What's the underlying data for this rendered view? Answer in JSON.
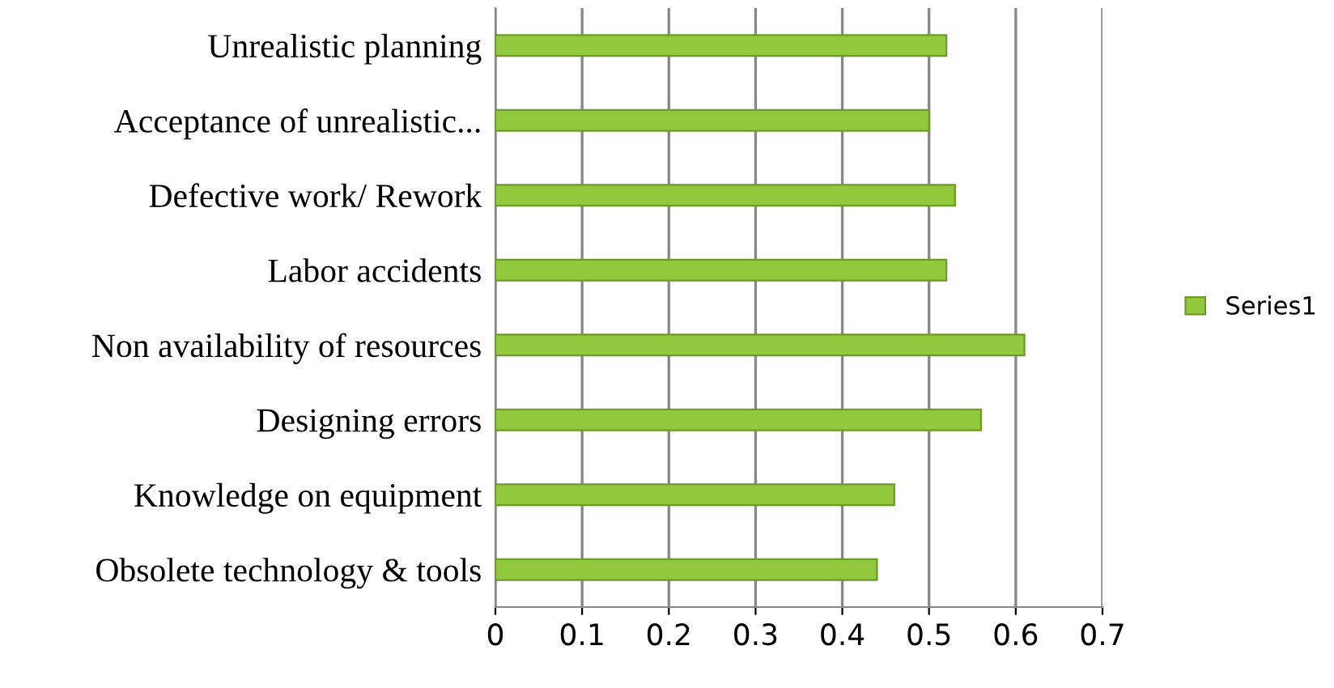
{
  "chart_data": {
    "type": "bar",
    "orientation": "horizontal",
    "categories": [
      "Unrealistic planning",
      "Acceptance of unrealistic...",
      "Defective work/ Rework",
      "Labor accidents",
      "Non availability of resources",
      "Designing errors",
      "Knowledge on equipment",
      "Obsolete technology & tools"
    ],
    "series": [
      {
        "name": "Series1",
        "color": "#92c83e",
        "values": [
          0.52,
          0.5,
          0.53,
          0.52,
          0.61,
          0.56,
          0.46,
          0.44
        ]
      }
    ],
    "xlim": [
      0,
      0.7
    ],
    "xticks": [
      0,
      0.1,
      0.2,
      0.3,
      0.4,
      0.5,
      0.6,
      0.7
    ],
    "grid": "x",
    "legend": "right"
  }
}
